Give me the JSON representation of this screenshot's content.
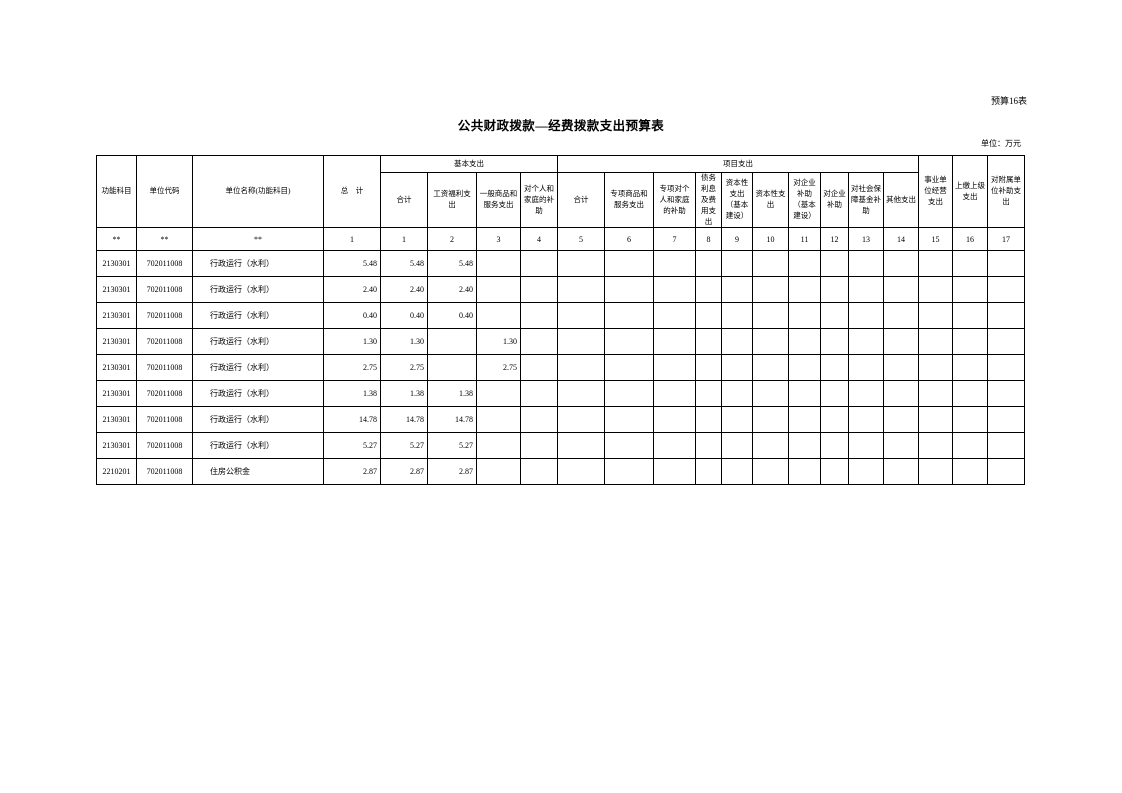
{
  "page": {
    "corner_label": "预算16表",
    "title": "公共财政拨款—经费拨款支出预算表",
    "unit_note": "单位：万元"
  },
  "table": {
    "header": {
      "function_subject": "功能科目",
      "unit_code": "单位代码",
      "unit_name": "单位名称(功能科目)",
      "grand_total": "总　计",
      "basic_group": "基本支出",
      "project_group": "项目支出",
      "basic_cols": [
        "合计",
        "工资福利支出",
        "一般商品和服务支出",
        "对个人和家庭的补助"
      ],
      "project_cols": [
        "合计",
        "专项商品和服务支出",
        "专项对个人和家庭的补助",
        "债务利息及费用支出",
        "资本性支出（基本建设）",
        "资本性支出",
        "对企业补助（基本建设）",
        "对企业补助",
        "对社会保障基金补助",
        "其他支出"
      ],
      "tail_cols": [
        "事业单位经营支出",
        "上缴上级支出",
        "对附属单位补助支出"
      ]
    },
    "index_row": [
      "**",
      "**",
      "**",
      "1",
      "1",
      "2",
      "3",
      "4",
      "5",
      "6",
      "7",
      "8",
      "9",
      "10",
      "11",
      "12",
      "13",
      "14",
      "15",
      "16",
      "17"
    ],
    "rows": [
      {
        "func": "2130301",
        "code": "702011008",
        "name": "行政运行（水利）",
        "values": [
          "5.48",
          "5.48",
          "5.48",
          "",
          "",
          "",
          "",
          "",
          "",
          "",
          "",
          "",
          "",
          "",
          "",
          "",
          "",
          ""
        ]
      },
      {
        "func": "2130301",
        "code": "702011008",
        "name": "行政运行（水利）",
        "values": [
          "2.40",
          "2.40",
          "2.40",
          "",
          "",
          "",
          "",
          "",
          "",
          "",
          "",
          "",
          "",
          "",
          "",
          "",
          "",
          ""
        ]
      },
      {
        "func": "2130301",
        "code": "702011008",
        "name": "行政运行（水利）",
        "values": [
          "0.40",
          "0.40",
          "0.40",
          "",
          "",
          "",
          "",
          "",
          "",
          "",
          "",
          "",
          "",
          "",
          "",
          "",
          "",
          ""
        ]
      },
      {
        "func": "2130301",
        "code": "702011008",
        "name": "行政运行（水利）",
        "values": [
          "1.30",
          "1.30",
          "",
          "1.30",
          "",
          "",
          "",
          "",
          "",
          "",
          "",
          "",
          "",
          "",
          "",
          "",
          "",
          ""
        ]
      },
      {
        "func": "2130301",
        "code": "702011008",
        "name": "行政运行（水利）",
        "values": [
          "2.75",
          "2.75",
          "",
          "2.75",
          "",
          "",
          "",
          "",
          "",
          "",
          "",
          "",
          "",
          "",
          "",
          "",
          "",
          ""
        ]
      },
      {
        "func": "2130301",
        "code": "702011008",
        "name": "行政运行（水利）",
        "values": [
          "1.38",
          "1.38",
          "1.38",
          "",
          "",
          "",
          "",
          "",
          "",
          "",
          "",
          "",
          "",
          "",
          "",
          "",
          "",
          ""
        ]
      },
      {
        "func": "2130301",
        "code": "702011008",
        "name": "行政运行（水利）",
        "values": [
          "14.78",
          "14.78",
          "14.78",
          "",
          "",
          "",
          "",
          "",
          "",
          "",
          "",
          "",
          "",
          "",
          "",
          "",
          "",
          ""
        ]
      },
      {
        "func": "2130301",
        "code": "702011008",
        "name": "行政运行（水利）",
        "values": [
          "5.27",
          "5.27",
          "5.27",
          "",
          "",
          "",
          "",
          "",
          "",
          "",
          "",
          "",
          "",
          "",
          "",
          "",
          "",
          ""
        ]
      },
      {
        "func": "2210201",
        "code": "702011008",
        "name": "住房公积金",
        "values": [
          "2.87",
          "2.87",
          "2.87",
          "",
          "",
          "",
          "",
          "",
          "",
          "",
          "",
          "",
          "",
          "",
          "",
          "",
          "",
          ""
        ]
      }
    ]
  }
}
